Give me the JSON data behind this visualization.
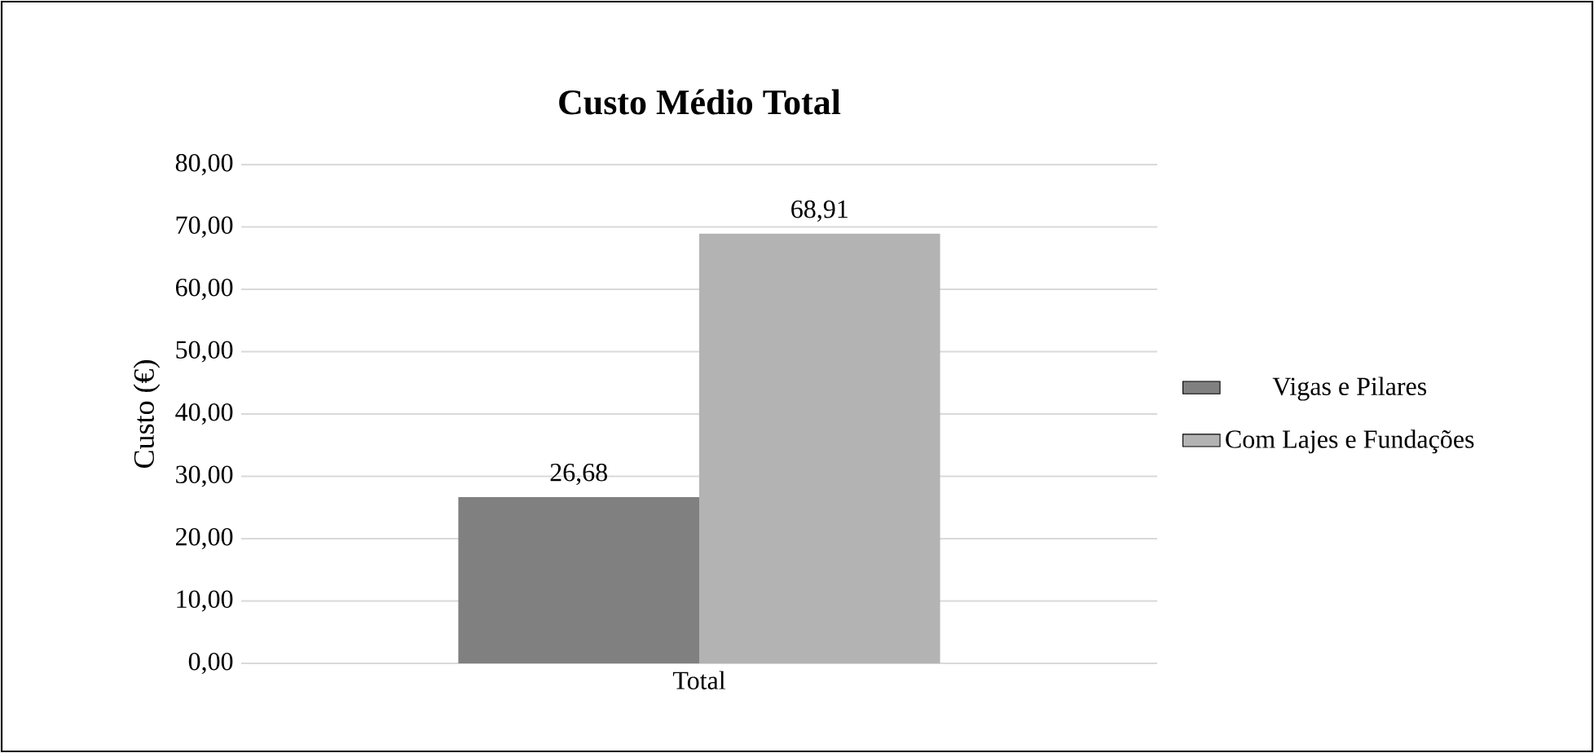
{
  "chart_data": {
    "type": "bar",
    "title": "Custo Médio Total",
    "ylabel": "Custo (€)",
    "categories": [
      "Total"
    ],
    "series": [
      {
        "name": "Vigas e Pilares",
        "color": "#808080",
        "values": [
          26.68
        ],
        "value_labels": [
          "26,68"
        ]
      },
      {
        "name": "Com Lajes e Fundações",
        "color": "#b3b3b3",
        "values": [
          68.91
        ],
        "value_labels": [
          "68,91"
        ]
      }
    ],
    "ylim": [
      0,
      80
    ],
    "yticks": [
      {
        "value": 0,
        "label": "0,00"
      },
      {
        "value": 10,
        "label": "10,00"
      },
      {
        "value": 20,
        "label": "20,00"
      },
      {
        "value": 30,
        "label": "30,00"
      },
      {
        "value": 40,
        "label": "40,00"
      },
      {
        "value": 50,
        "label": "50,00"
      },
      {
        "value": 60,
        "label": "60,00"
      },
      {
        "value": 70,
        "label": "70,00"
      },
      {
        "value": 80,
        "label": "80,00"
      }
    ],
    "grid": "y",
    "legend": "right"
  }
}
